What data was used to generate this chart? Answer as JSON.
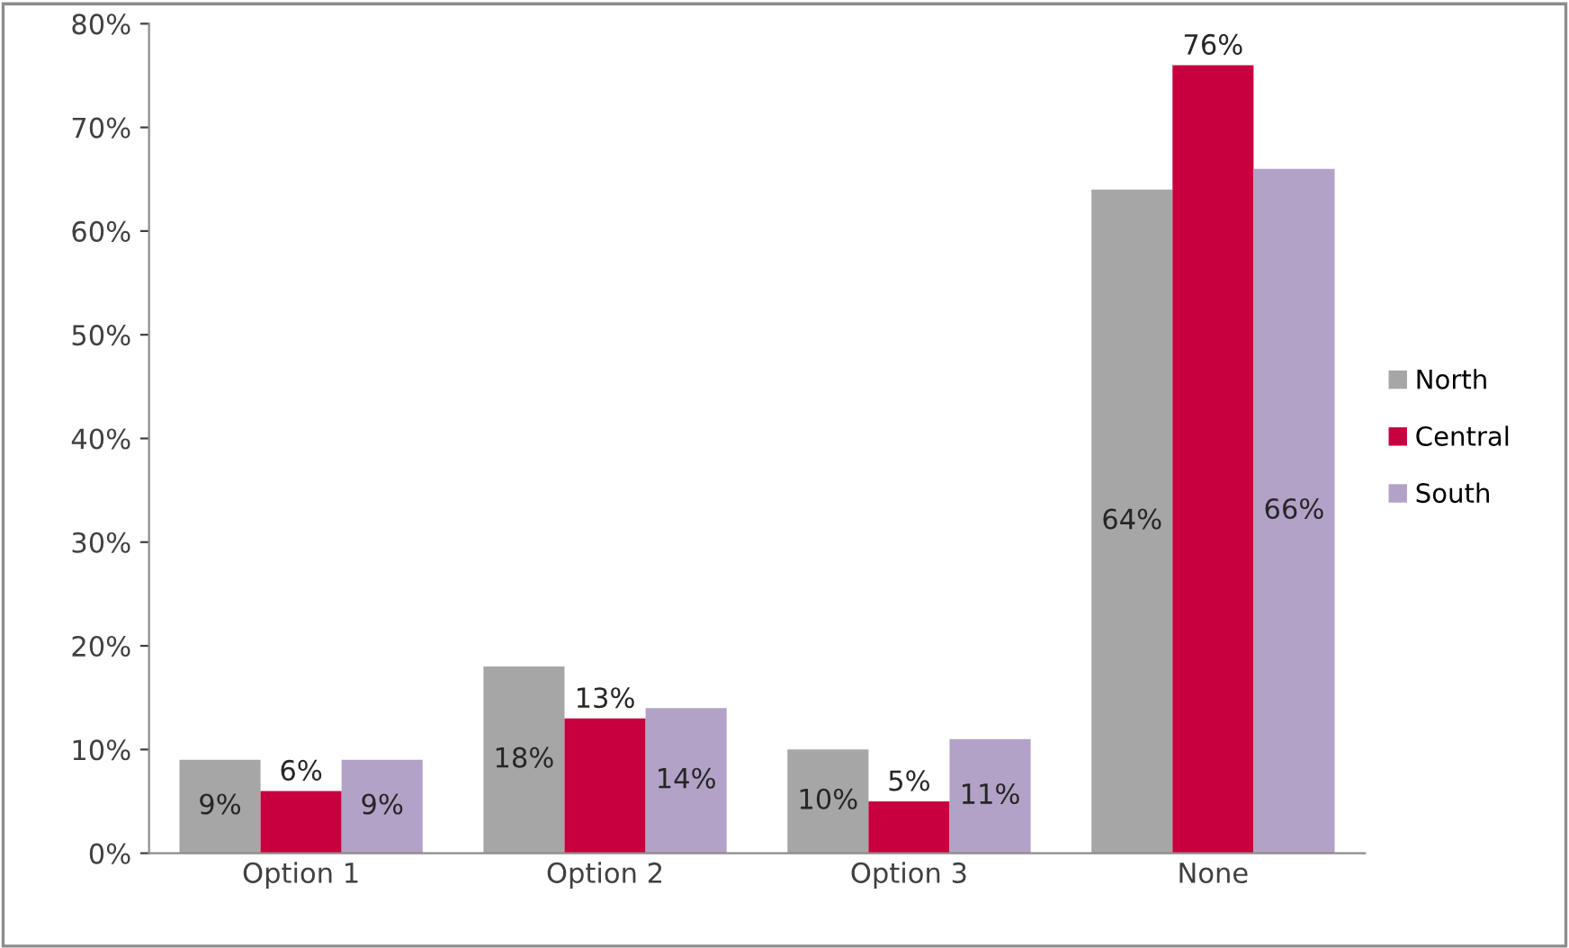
{
  "chart_data": {
    "type": "bar",
    "categories": [
      "Option 1",
      "Option 2",
      "Option 3",
      "None"
    ],
    "series": [
      {
        "name": "North",
        "color": "#a6a6a6",
        "values": [
          9,
          18,
          10,
          64
        ],
        "value_labels": [
          "9%",
          "18%",
          "10%",
          "64%"
        ]
      },
      {
        "name": "Central",
        "color": "#c8003f",
        "values": [
          6,
          13,
          5,
          76
        ],
        "value_labels": [
          "6%",
          "13%",
          "5%",
          "76%"
        ]
      },
      {
        "name": "South",
        "color": "#b3a2c7",
        "values": [
          9,
          14,
          11,
          66
        ],
        "value_labels": [
          "9%",
          "14%",
          "11%",
          "66%"
        ]
      }
    ],
    "ylim": [
      0,
      80
    ],
    "yticks": [
      {
        "value": 0,
        "label": "0%"
      },
      {
        "value": 10,
        "label": "10%"
      },
      {
        "value": 20,
        "label": "20%"
      },
      {
        "value": 30,
        "label": "30%"
      },
      {
        "value": 40,
        "label": "40%"
      },
      {
        "value": 50,
        "label": "50%"
      },
      {
        "value": 60,
        "label": "60%"
      },
      {
        "value": 70,
        "label": "70%"
      },
      {
        "value": 80,
        "label": "80%"
      }
    ],
    "grid": false,
    "legend": "right"
  }
}
